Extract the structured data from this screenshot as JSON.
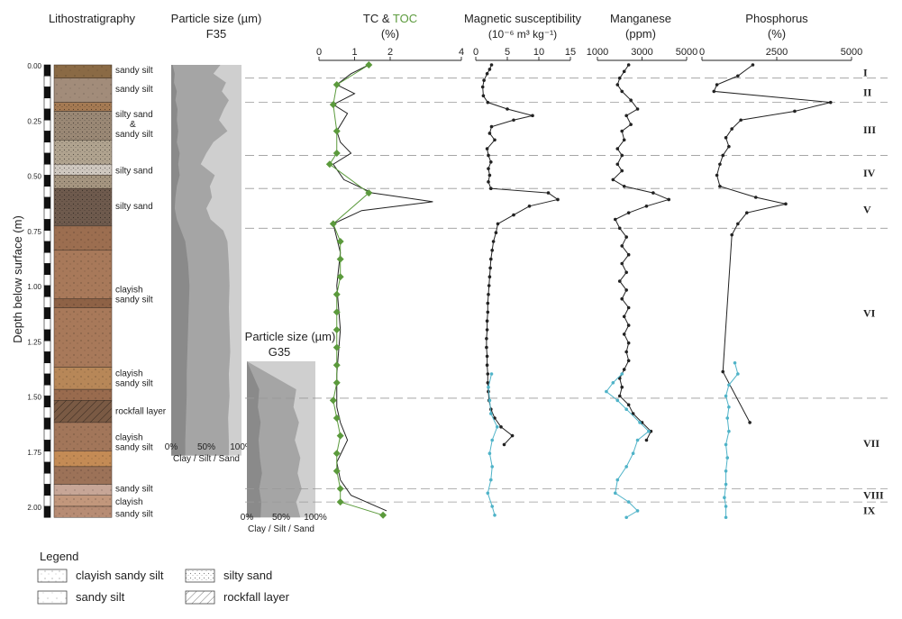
{
  "lithology": {
    "title": "Lithostratigraphy",
    "axis_label": "Depth below surface (m)",
    "ticks": [
      "0.00",
      "0.25",
      "0.50",
      "0.75",
      "1.00",
      "1.25",
      "1.50",
      "1.75",
      "2.00"
    ],
    "units": [
      {
        "top": 0.0,
        "bottom": 0.06,
        "color": "#8a6a45",
        "pattern": "sandy-silt",
        "label": "sandy silt"
      },
      {
        "top": 0.06,
        "bottom": 0.17,
        "color": "#a28c7a",
        "pattern": "sandy-silt",
        "label": "sandy silt"
      },
      {
        "top": 0.17,
        "bottom": 0.21,
        "color": "#a57a53",
        "pattern": "silty-sand",
        "label": "silty sand"
      },
      {
        "top": 0.21,
        "bottom": 0.34,
        "color": "#9a8875",
        "pattern": "silty-sand",
        "label": "& sandy silt"
      },
      {
        "top": 0.34,
        "bottom": 0.45,
        "color": "#b0a38f",
        "pattern": "silty-sand",
        "label": ""
      },
      {
        "top": 0.45,
        "bottom": 0.5,
        "color": "#cfc8c0",
        "pattern": "silty-sand",
        "label": "silty sand"
      },
      {
        "top": 0.5,
        "bottom": 0.56,
        "color": "#a59580",
        "pattern": "silty-sand",
        "label": ""
      },
      {
        "top": 0.56,
        "bottom": 0.73,
        "color": "#6e5a4d",
        "pattern": "silty-sand",
        "label": "silty sand"
      },
      {
        "top": 0.73,
        "bottom": 0.84,
        "color": "#9c6e50",
        "pattern": "clayish",
        "label": ""
      },
      {
        "top": 0.84,
        "bottom": 1.06,
        "color": "#a8795a",
        "pattern": "clayish",
        "label": "clayish sandy silt"
      },
      {
        "top": 1.06,
        "bottom": 1.1,
        "color": "#8e6246",
        "pattern": "clayish",
        "label": ""
      },
      {
        "top": 1.1,
        "bottom": 1.37,
        "color": "#a8795a",
        "pattern": "clayish",
        "label": ""
      },
      {
        "top": 1.37,
        "bottom": 1.47,
        "color": "#b78758",
        "pattern": "clayish",
        "label": "clayish sandy silt"
      },
      {
        "top": 1.47,
        "bottom": 1.52,
        "color": "#996b4e",
        "pattern": "clayish",
        "label": ""
      },
      {
        "top": 1.52,
        "bottom": 1.62,
        "color": "#7a5a44",
        "pattern": "rockfall",
        "label": "rockfall layer"
      },
      {
        "top": 1.62,
        "bottom": 1.75,
        "color": "#a2765a",
        "pattern": "clayish",
        "label": "clayish sandy silt"
      },
      {
        "top": 1.75,
        "bottom": 1.82,
        "color": "#c48b55",
        "pattern": "clayish",
        "label": ""
      },
      {
        "top": 1.82,
        "bottom": 1.9,
        "color": "#9c7258",
        "pattern": "clayish",
        "label": ""
      },
      {
        "top": 1.9,
        "bottom": 1.95,
        "color": "#c7a697",
        "pattern": "sandy-silt",
        "label": "sandy silt"
      },
      {
        "top": 1.95,
        "bottom": 2.0,
        "color": "#c2977c",
        "pattern": "clayish",
        "label": "clayish"
      },
      {
        "top": 2.0,
        "bottom": 2.05,
        "color": "#b78c74",
        "pattern": "clayish",
        "label": "sandy silt"
      }
    ],
    "side_labels": [
      {
        "depth": 0.025,
        "lines": [
          "sandy silt"
        ]
      },
      {
        "depth": 0.11,
        "lines": [
          "sandy silt"
        ]
      },
      {
        "depth": 0.27,
        "lines": [
          "silty sand",
          "&",
          "sandy silt"
        ]
      },
      {
        "depth": 0.48,
        "lines": [
          "silty sand"
        ]
      },
      {
        "depth": 0.64,
        "lines": [
          "silty sand"
        ]
      },
      {
        "depth": 1.04,
        "lines": [
          "clayish",
          "sandy silt"
        ]
      },
      {
        "depth": 1.42,
        "lines": [
          "clayish",
          "sandy silt"
        ]
      },
      {
        "depth": 1.57,
        "lines": [
          "rockfall layer"
        ]
      },
      {
        "depth": 1.71,
        "lines": [
          "clayish",
          "sandy silt"
        ]
      },
      {
        "depth": 1.92,
        "lines": [
          "sandy silt"
        ]
      },
      {
        "depth": 1.98,
        "lines": [
          "clayish"
        ]
      },
      {
        "depth": 2.035,
        "lines": [
          "sandy silt"
        ]
      }
    ]
  },
  "chart_data": [
    {
      "type": "area",
      "title": "Particle size (µm)",
      "subtitle": "F35",
      "xlabel": "Clay / Silt / Sand",
      "x_ticks": [
        "0%",
        "50%",
        "100%"
      ],
      "depth": [
        0.0,
        0.04,
        0.08,
        0.12,
        0.16,
        0.2,
        0.25,
        0.3,
        0.35,
        0.4,
        0.45,
        0.5,
        0.55,
        0.6,
        0.65,
        0.7,
        0.75,
        0.8,
        0.9,
        1.0,
        1.1,
        1.2,
        1.3,
        1.4,
        1.5,
        1.6,
        1.7,
        1.75
      ],
      "clay": [
        2,
        5,
        4,
        8,
        6,
        9,
        8,
        10,
        8,
        12,
        10,
        12,
        8,
        6,
        5,
        8,
        14,
        20,
        24,
        26,
        25,
        24,
        23,
        22,
        22,
        21,
        20,
        20
      ],
      "clay_silt": [
        70,
        60,
        78,
        72,
        82,
        75,
        68,
        80,
        60,
        50,
        42,
        62,
        55,
        58,
        50,
        56,
        74,
        80,
        82,
        83,
        82,
        83,
        84,
        82,
        83,
        81,
        82,
        82
      ]
    },
    {
      "type": "area",
      "title": "Particle size (µm)",
      "subtitle": "G35",
      "xlabel": "Clay / Silt / Sand",
      "x_ticks": [
        "0%",
        "50%",
        "100%"
      ],
      "depth": [
        1.47,
        1.55,
        1.62,
        1.7,
        1.78,
        1.85,
        1.92,
        1.98,
        2.05
      ],
      "clay": [
        18,
        16,
        20,
        17,
        19,
        22,
        18,
        21,
        20
      ],
      "clay_silt": [
        72,
        68,
        76,
        70,
        78,
        74,
        80,
        72,
        78
      ]
    },
    {
      "type": "line",
      "title": "TC & TOC",
      "unit": "(%)",
      "xlim": [
        0,
        4
      ],
      "x_ticks": [
        0,
        1,
        2,
        4
      ],
      "x_tick_labels": [
        "0",
        "",
        "1",
        "",
        "2",
        "",
        "",
        "",
        "4"
      ],
      "series": [
        {
          "name": "TC",
          "color": "#222222",
          "depth": [
            0.0,
            0.04,
            0.09,
            0.13,
            0.18,
            0.22,
            0.3,
            0.35,
            0.4,
            0.45,
            0.52,
            0.58,
            0.62,
            0.66,
            0.72,
            0.85,
            1.0,
            1.2,
            1.4,
            1.55,
            1.62,
            1.7,
            1.8,
            1.88,
            1.95,
            2.02
          ],
          "values": [
            1.4,
            0.9,
            0.5,
            1.0,
            0.4,
            0.8,
            0.5,
            0.6,
            0.9,
            0.4,
            0.7,
            1.5,
            3.2,
            1.2,
            0.4,
            0.6,
            0.5,
            0.6,
            0.5,
            0.5,
            0.6,
            0.8,
            0.5,
            0.6,
            0.9,
            1.9
          ]
        },
        {
          "name": "TOC",
          "color": "#5b9a3c",
          "depth": [
            0.0,
            0.09,
            0.18,
            0.3,
            0.4,
            0.45,
            0.58,
            0.72,
            0.8,
            0.88,
            0.96,
            1.04,
            1.12,
            1.2,
            1.28,
            1.36,
            1.44,
            1.52,
            1.6,
            1.68,
            1.76,
            1.84,
            1.92,
            1.98,
            2.04
          ],
          "values": [
            1.4,
            0.5,
            0.4,
            0.5,
            0.5,
            0.3,
            1.4,
            0.4,
            0.6,
            0.6,
            0.6,
            0.5,
            0.5,
            0.5,
            0.5,
            0.5,
            0.5,
            0.4,
            0.5,
            0.6,
            0.5,
            0.5,
            0.6,
            0.6,
            1.8
          ]
        }
      ]
    },
    {
      "type": "line",
      "title": "Magnetic susceptibility",
      "unit": "(10⁻⁶ m³ kg⁻¹)",
      "xlim": [
        0,
        15
      ],
      "x_ticks": [
        0,
        5,
        10,
        15
      ],
      "series": [
        {
          "name": "",
          "color": "#222222",
          "depth": [
            0.0,
            0.02,
            0.04,
            0.07,
            0.1,
            0.14,
            0.17,
            0.2,
            0.23,
            0.25,
            0.28,
            0.31,
            0.34,
            0.38,
            0.41,
            0.44,
            0.47,
            0.5,
            0.53,
            0.56,
            0.58,
            0.61,
            0.64,
            0.68,
            0.72,
            0.76,
            0.8,
            0.84,
            0.88,
            0.92,
            0.96,
            1.0,
            1.04,
            1.08,
            1.12,
            1.16,
            1.2,
            1.24,
            1.28,
            1.32,
            1.36,
            1.4,
            1.44,
            1.48,
            1.52,
            1.56,
            1.6,
            1.64,
            1.68,
            1.72
          ],
          "values": [
            2.5,
            2.2,
            1.8,
            1.3,
            1.1,
            1.2,
            1.9,
            5.0,
            9.0,
            6.0,
            2.5,
            2.2,
            3.0,
            1.8,
            2.0,
            2.4,
            2.0,
            2.2,
            2.0,
            2.4,
            11.5,
            13.0,
            8.5,
            6.0,
            3.5,
            3.2,
            2.8,
            2.6,
            2.4,
            2.3,
            2.2,
            2.1,
            2.0,
            1.9,
            1.9,
            1.8,
            1.8,
            1.7,
            1.7,
            1.8,
            1.8,
            1.9,
            1.9,
            2.0,
            2.1,
            2.4,
            3.0,
            4.0,
            5.8,
            4.5
          ]
        },
        {
          "name": "",
          "color": "#4fb3c8",
          "depth": [
            1.4,
            1.46,
            1.52,
            1.58,
            1.64,
            1.7,
            1.76,
            1.82,
            1.88,
            1.94,
            2.0,
            2.04
          ],
          "values": [
            2.5,
            2.0,
            2.2,
            2.4,
            3.4,
            2.6,
            2.2,
            2.6,
            2.4,
            1.9,
            2.6,
            3.0
          ]
        }
      ]
    },
    {
      "type": "line",
      "title": "Manganese",
      "unit": "(ppm)",
      "xlim": [
        1000,
        5000
      ],
      "x_ticks": [
        1000,
        3000,
        5000
      ],
      "series": [
        {
          "name": "",
          "color": "#222222",
          "depth": [
            0.0,
            0.03,
            0.06,
            0.09,
            0.12,
            0.16,
            0.2,
            0.23,
            0.27,
            0.3,
            0.34,
            0.38,
            0.41,
            0.45,
            0.48,
            0.52,
            0.55,
            0.58,
            0.61,
            0.64,
            0.67,
            0.7,
            0.74,
            0.78,
            0.82,
            0.86,
            0.9,
            0.94,
            0.98,
            1.02,
            1.06,
            1.1,
            1.14,
            1.18,
            1.22,
            1.26,
            1.3,
            1.34,
            1.38,
            1.42,
            1.46,
            1.5,
            1.54,
            1.58,
            1.62,
            1.66,
            1.7
          ],
          "values": [
            2400,
            2200,
            2000,
            1900,
            2100,
            2500,
            2800,
            2300,
            2500,
            2100,
            2200,
            1900,
            2100,
            1900,
            2100,
            1700,
            2200,
            3500,
            4200,
            3200,
            2400,
            1800,
            2000,
            2300,
            2100,
            2400,
            2100,
            2300,
            2000,
            2300,
            2100,
            2400,
            2200,
            2400,
            2200,
            2400,
            2300,
            2400,
            2200,
            2000,
            2100,
            2000,
            2400,
            2600,
            3000,
            3400,
            3200
          ]
        },
        {
          "name": "",
          "color": "#4fb3c8",
          "depth": [
            1.4,
            1.44,
            1.48,
            1.52,
            1.56,
            1.62,
            1.66,
            1.7,
            1.76,
            1.82,
            1.88,
            1.94,
            1.98,
            2.02,
            2.05
          ],
          "values": [
            2100,
            1700,
            1400,
            1900,
            2300,
            2900,
            3300,
            2800,
            2600,
            2300,
            1900,
            1800,
            2400,
            2800,
            2300
          ]
        }
      ]
    },
    {
      "type": "line",
      "title": "Phosphorus",
      "unit": "(%)",
      "xlim": [
        0,
        5000
      ],
      "x_ticks": [
        0,
        2500,
        5000
      ],
      "x_tick_labels": [
        "0",
        "2500",
        "5000"
      ],
      "series": [
        {
          "name": "",
          "color": "#222222",
          "depth": [
            0.0,
            0.05,
            0.09,
            0.12,
            0.17,
            0.21,
            0.25,
            0.29,
            0.33,
            0.37,
            0.41,
            0.45,
            0.5,
            0.55,
            0.6,
            0.63,
            0.67,
            0.72,
            0.77,
            1.39,
            1.62
          ],
          "values": [
            1700,
            1200,
            500,
            400,
            4300,
            3100,
            1300,
            1000,
            800,
            900,
            700,
            600,
            500,
            600,
            1800,
            2800,
            1500,
            1200,
            1000,
            700,
            1600
          ]
        },
        {
          "name": "",
          "color": "#4fb3c8",
          "depth": [
            1.35,
            1.4,
            1.45,
            1.5,
            1.55,
            1.6,
            1.66,
            1.72,
            1.78,
            1.84,
            1.9,
            1.96,
            2.0,
            2.05
          ],
          "values": [
            1100,
            1200,
            900,
            800,
            900,
            850,
            900,
            800,
            850,
            800,
            800,
            750,
            800,
            800
          ]
        }
      ]
    }
  ],
  "zones": {
    "boundaries": [
      0.06,
      0.17,
      0.41,
      0.56,
      0.74,
      1.51,
      1.92,
      1.98
    ],
    "labels": [
      {
        "depth": 0.03,
        "label": "I"
      },
      {
        "depth": 0.12,
        "label": "II"
      },
      {
        "depth": 0.29,
        "label": "III"
      },
      {
        "depth": 0.485,
        "label": "IV"
      },
      {
        "depth": 0.65,
        "label": "V"
      },
      {
        "depth": 1.12,
        "label": "VI"
      },
      {
        "depth": 1.71,
        "label": "VII"
      },
      {
        "depth": 1.945,
        "label": "VIII"
      },
      {
        "depth": 2.015,
        "label": "IX"
      }
    ]
  },
  "legend": {
    "title": "Legend",
    "items": [
      {
        "label": "clayish sandy silt",
        "pattern": "clayish"
      },
      {
        "label": "sandy silt",
        "pattern": "sandy-silt"
      },
      {
        "label": "silty sand",
        "pattern": "silty-sand"
      },
      {
        "label": "rockfall layer",
        "pattern": "rockfall"
      }
    ]
  },
  "colors": {
    "tc": "#222222",
    "toc": "#5b9a3c",
    "g35_series": "#4fb3c8",
    "clay": "#8a8a8a",
    "silt": "#a5a5a5",
    "sand": "#cfcfcf"
  }
}
